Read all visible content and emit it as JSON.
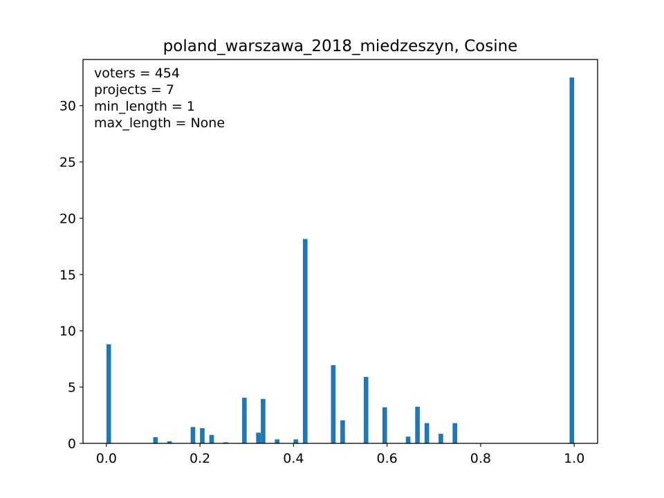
{
  "chart_data": {
    "type": "bar",
    "title": "poland_warszawa_2018_miedzeszyn, Cosine",
    "xlabel": "",
    "ylabel": "",
    "xlim": [
      -0.05,
      1.05
    ],
    "ylim": [
      0,
      34.1
    ],
    "x_ticks": [
      0.0,
      0.2,
      0.4,
      0.6,
      0.8,
      1.0
    ],
    "x_tick_labels": [
      "0.0",
      "0.2",
      "0.4",
      "0.6",
      "0.8",
      "1.0"
    ],
    "y_ticks": [
      0,
      5,
      10,
      15,
      20,
      25,
      30
    ],
    "y_tick_labels": [
      "0",
      "5",
      "10",
      "15",
      "20",
      "25",
      "30"
    ],
    "grid": false,
    "bar_color": "#1f77b4",
    "bin_width": 0.01,
    "annotations": [
      "voters = 454",
      "projects = 7",
      "min_length = 1",
      "max_length = None"
    ],
    "bars": [
      {
        "x": 0.005,
        "value": 8.8
      },
      {
        "x": 0.105,
        "value": 0.55
      },
      {
        "x": 0.135,
        "value": 0.18
      },
      {
        "x": 0.185,
        "value": 1.45
      },
      {
        "x": 0.205,
        "value": 1.35
      },
      {
        "x": 0.225,
        "value": 0.75
      },
      {
        "x": 0.255,
        "value": 0.1
      },
      {
        "x": 0.295,
        "value": 4.05
      },
      {
        "x": 0.325,
        "value": 0.95
      },
      {
        "x": 0.335,
        "value": 3.95
      },
      {
        "x": 0.365,
        "value": 0.35
      },
      {
        "x": 0.405,
        "value": 0.35
      },
      {
        "x": 0.425,
        "value": 18.15
      },
      {
        "x": 0.485,
        "value": 6.95
      },
      {
        "x": 0.505,
        "value": 2.05
      },
      {
        "x": 0.555,
        "value": 5.9
      },
      {
        "x": 0.595,
        "value": 3.2
      },
      {
        "x": 0.645,
        "value": 0.6
      },
      {
        "x": 0.665,
        "value": 3.25
      },
      {
        "x": 0.685,
        "value": 1.8
      },
      {
        "x": 0.715,
        "value": 0.85
      },
      {
        "x": 0.745,
        "value": 1.8
      },
      {
        "x": 0.995,
        "value": 32.5
      }
    ]
  }
}
